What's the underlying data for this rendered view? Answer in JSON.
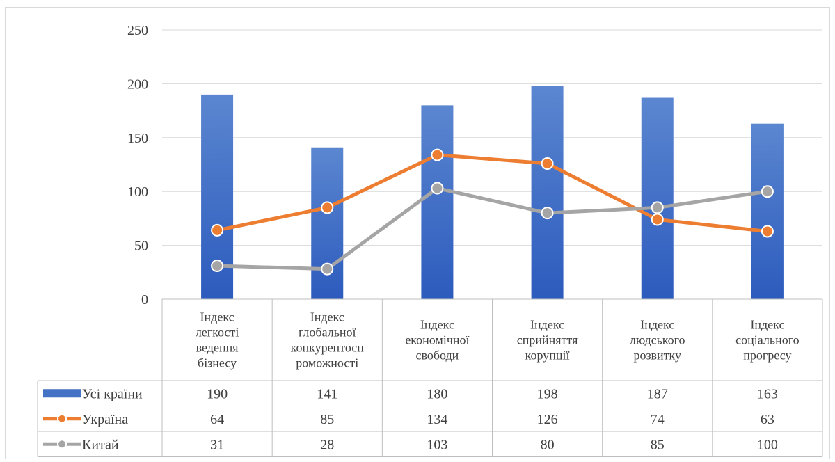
{
  "chart_data": {
    "type": "bar",
    "categories": [
      [
        "Індекс",
        "легкості",
        "ведення",
        "бізнесу"
      ],
      [
        "Індекс",
        "глобальної",
        "конкурентосп",
        "роможності"
      ],
      [
        "Індекс",
        "економічної",
        "свободи"
      ],
      [
        "Індекс",
        "сприйняття",
        "корупції"
      ],
      [
        "Індекс",
        "людського",
        "розвитку"
      ],
      [
        "Індекс",
        "соціального",
        "прогресу"
      ]
    ],
    "series": [
      {
        "name": "Усі країни",
        "kind": "bar",
        "color": "#4472c4",
        "values": [
          190,
          141,
          180,
          198,
          187,
          163
        ]
      },
      {
        "name": "Україна",
        "kind": "line",
        "color": "#ed7d31",
        "values": [
          64,
          85,
          134,
          126,
          74,
          63
        ]
      },
      {
        "name": "Китай",
        "kind": "line",
        "color": "#a5a5a5",
        "values": [
          31,
          28,
          103,
          80,
          85,
          100
        ]
      }
    ],
    "ylim": [
      0,
      250
    ],
    "yticks": [
      0,
      50,
      100,
      150,
      200,
      250
    ],
    "grid": true,
    "legend": "data-table"
  }
}
